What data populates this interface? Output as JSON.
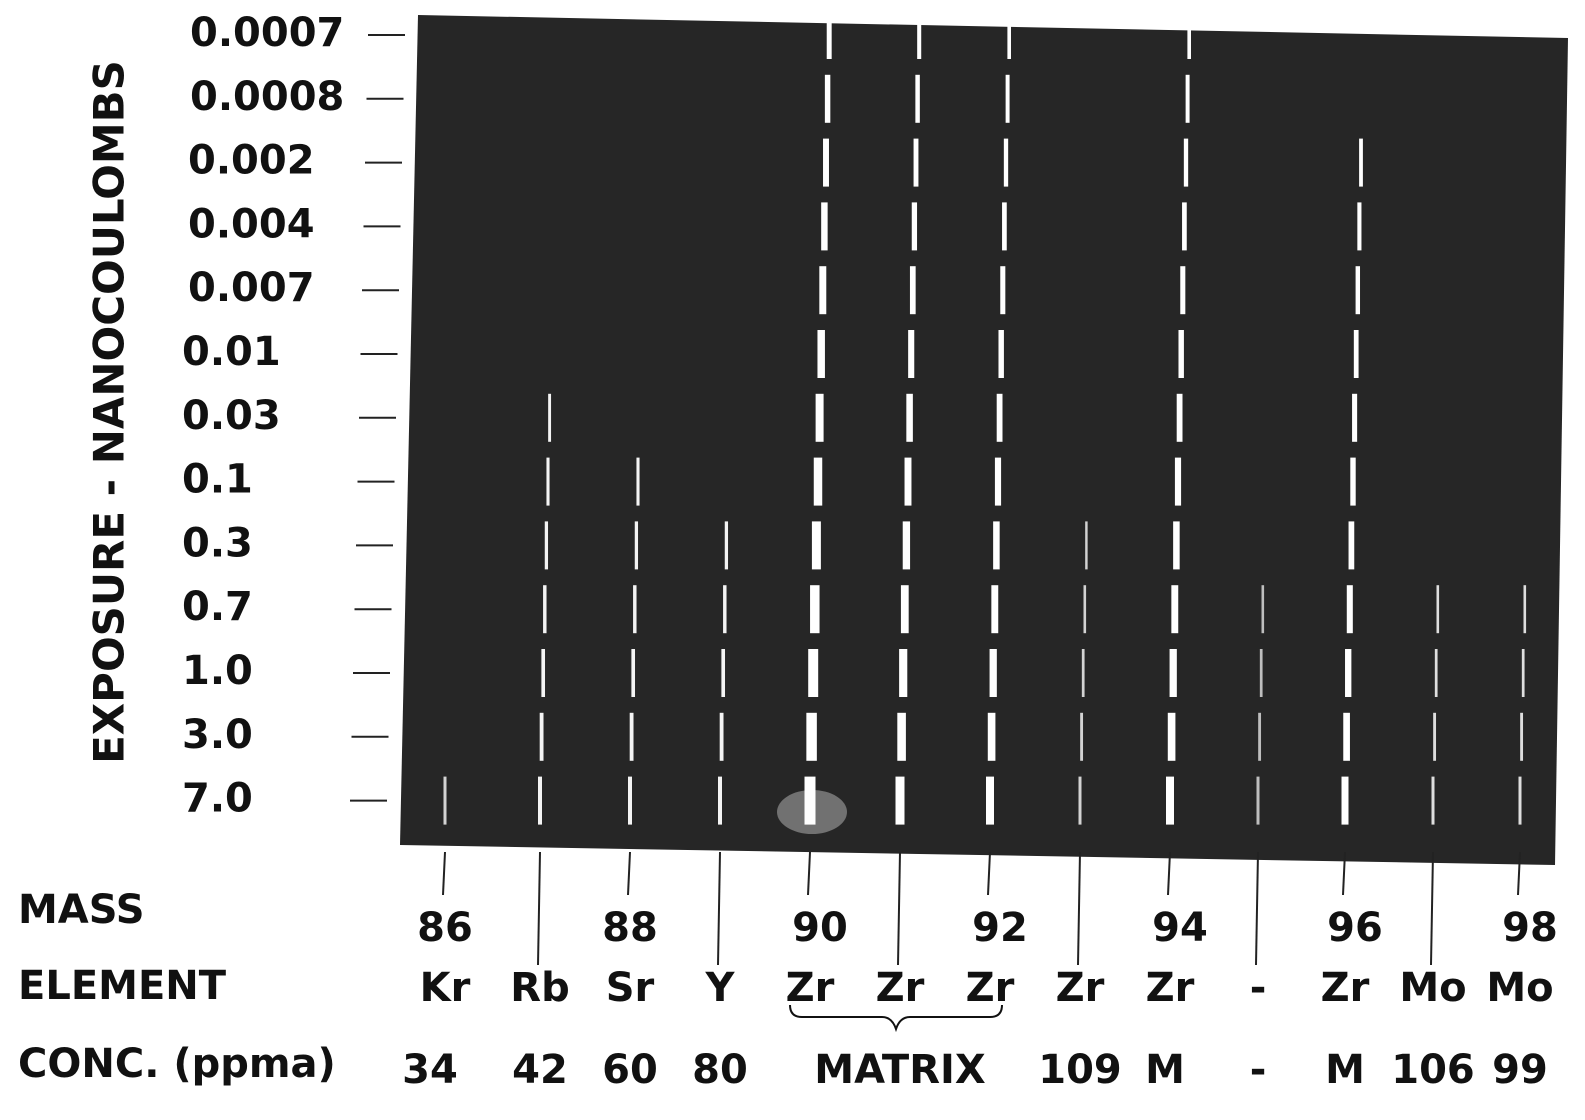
{
  "figure": {
    "y_axis_title": "EXPOSURE - NANOCOULOMBS",
    "exposures": [
      "0.0007",
      "0.0008",
      "0.002",
      "0.004",
      "0.007",
      "0.01",
      "0.03",
      "0.1",
      "0.3",
      "0.7",
      "1.0",
      "3.0",
      "7.0"
    ],
    "row_labels": {
      "mass": "MASS",
      "element": "ELEMENT",
      "conc": "CONC. (ppma)"
    },
    "masses": [
      "86",
      "88",
      "90",
      "92",
      "94",
      "96",
      "98"
    ],
    "elements": [
      "Kr",
      "Rb",
      "Sr",
      "Y",
      "Zr",
      "Zr",
      "Zr",
      "Zr",
      "Zr",
      "-",
      "Zr",
      "Mo",
      "Mo"
    ],
    "concentrations": [
      "34",
      "42",
      "60",
      "80",
      "MATRIX",
      "109",
      "M",
      "-",
      "M",
      "106",
      "99"
    ]
  }
}
